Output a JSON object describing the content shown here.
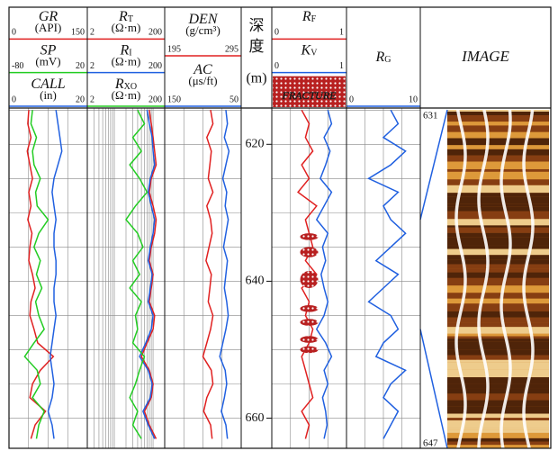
{
  "chart_data": {
    "type": "well-log",
    "depth_label": [
      "深",
      "度",
      "(m)"
    ],
    "depth": [
      615,
      617,
      619,
      621,
      623,
      625,
      627,
      629,
      631,
      633,
      635,
      637,
      639,
      641,
      643,
      645,
      647,
      649,
      651,
      653,
      655,
      657,
      659,
      661,
      663
    ],
    "ylim": [
      614.7,
      664.4
    ],
    "yticks": [
      620,
      640,
      660
    ],
    "ygrid": [
      615,
      620,
      625,
      630,
      635,
      640,
      645,
      650,
      655,
      660
    ],
    "tracks": [
      {
        "xgrid": [
          37.5,
          75,
          112.5
        ],
        "curves": [
          {
            "name": "GR",
            "unit": "(API)",
            "xlim": [
              0,
              150
            ],
            "color": "#e02020",
            "values": [
              38,
              36,
              42,
              35,
              40,
              45,
              38,
              42,
              36,
              44,
              40,
              38,
              45,
              50,
              42,
              40,
              48,
              55,
              85,
              60,
              45,
              40,
              70,
              50,
              42
            ]
          },
          {
            "name": "SP",
            "unit": "(mV)",
            "xlim": [
              -80,
              20
            ],
            "color": "#22cc22",
            "values": [
              -50,
              -52,
              -45,
              -50,
              -48,
              -40,
              -46,
              -44,
              -30,
              -42,
              -48,
              -40,
              -45,
              -38,
              -46,
              -42,
              -35,
              -48,
              -60,
              -44,
              -40,
              -50,
              -35,
              -42,
              -45
            ]
          },
          {
            "name": "CALL",
            "unit": "(in)",
            "xlim": [
              0,
              20
            ],
            "color": "#2060e0",
            "values": [
              12,
              12.5,
              13,
              13.5,
              12.5,
              11.5,
              11,
              11.5,
              12,
              11.5,
              11.5,
              12,
              12,
              11.5,
              11.5,
              12,
              11.5,
              11,
              10.5,
              11,
              11.5,
              11,
              10,
              11,
              11.5
            ]
          }
        ]
      },
      {
        "log": true,
        "xgrid": [
          3,
          4,
          5,
          6,
          7,
          8,
          9,
          10,
          20,
          30,
          40,
          50,
          60,
          70,
          80,
          90,
          100
        ],
        "curves": [
          {
            "name": "R",
            "sub": "T",
            "unit": "(Ω·m)",
            "xlim": [
              2,
              200
            ],
            "color": "#e02020",
            "values": [
              80,
              90,
              100,
              110,
              120,
              90,
              80,
              100,
              120,
              110,
              90,
              80,
              100,
              90,
              80,
              110,
              100,
              70,
              50,
              80,
              100,
              90,
              60,
              80,
              120
            ]
          },
          {
            "name": "R",
            "sub": "I",
            "unit": "(Ω·m)",
            "xlim": [
              2,
              200
            ],
            "color": "#2060e0",
            "values": [
              70,
              80,
              95,
              100,
              110,
              85,
              75,
              90,
              110,
              100,
              85,
              75,
              95,
              85,
              75,
              100,
              90,
              65,
              45,
              75,
              95,
              85,
              55,
              75,
              110
            ]
          },
          {
            "name": "R",
            "sub": "XO",
            "unit": "(Ω·m)",
            "xlim": [
              2,
              200
            ],
            "color": "#22cc22",
            "values": [
              40,
              60,
              30,
              50,
              25,
              45,
              70,
              35,
              20,
              40,
              55,
              30,
              45,
              25,
              50,
              35,
              40,
              30,
              60,
              45,
              35,
              25,
              40,
              30,
              50
            ]
          }
        ]
      },
      {
        "xgrid": [
          220,
          245,
          270
        ],
        "curves": [
          {
            "name": "DEN",
            "unit": "(g/cm³)",
            "xlim": [
              195,
              295
            ],
            "color": "#e02020",
            "values": [
              255,
              258,
              250,
              256,
              254,
              252,
              258,
              250,
              255,
              257,
              253,
              249,
              256,
              254,
              252,
              258,
              255,
              250,
              245,
              256,
              258,
              250,
              246,
              255,
              257
            ]
          },
          {
            "name": "AC",
            "unit": "(μs/ft)",
            "xlim": [
              150,
              50
            ],
            "color": "#2060e0",
            "values": [
              70,
              68,
              72,
              66,
              70,
              74,
              69,
              71,
              67,
              70,
              73,
              68,
              70,
              72,
              69,
              67,
              70,
              74,
              78,
              71,
              69,
              72,
              76,
              70,
              68
            ]
          }
        ]
      },
      {
        "xgrid": [
          0.25,
          0.5,
          0.75
        ],
        "curves": [
          {
            "name": "R",
            "sub": "F",
            "xlim": [
              0,
              1
            ],
            "color": "#e02020",
            "values": [
              0.4,
              0.5,
              0.45,
              0.55,
              0.4,
              0.5,
              0.35,
              0.6,
              0.45,
              0.5,
              0.55,
              0.45,
              0.6,
              0.4,
              0.5,
              0.45,
              0.55,
              0.5,
              0.4,
              0.45,
              0.5,
              0.55,
              0.4,
              0.5,
              0.45
            ]
          },
          {
            "name": "K",
            "sub": "V",
            "xlim": [
              0,
              1
            ],
            "color": "#2060e0",
            "values": [
              0.75,
              0.8,
              0.7,
              0.78,
              0.72,
              0.65,
              0.8,
              0.7,
              0.6,
              0.75,
              0.68,
              0.72,
              0.66,
              0.7,
              0.75,
              0.7,
              0.6,
              0.72,
              0.8,
              0.7,
              0.75,
              0.68,
              0.72,
              0.74,
              0.7
            ]
          }
        ],
        "fracture": {
          "label": "FRACTURE",
          "intervals": [
            [
              633,
              634
            ],
            [
              635,
              636.5
            ],
            [
              638.5,
              641
            ],
            [
              643.5,
              644.5
            ],
            [
              645.5,
              646.5
            ],
            [
              648,
              649
            ],
            [
              649.5,
              650.5
            ]
          ]
        }
      },
      {
        "xgrid": [
          2.5,
          5,
          7.5
        ],
        "curves": [
          {
            "name": "R",
            "sub": "G",
            "xlim": [
              0,
              10
            ],
            "color": "#2060e0",
            "values": [
              6,
              7,
              5,
              8,
              6,
              3,
              7,
              5,
              6,
              8,
              6,
              4,
              7,
              5,
              3,
              6,
              7,
              5,
              4,
              8,
              6,
              5,
              7,
              6,
              5
            ]
          }
        ]
      }
    ],
    "image": {
      "title": "IMAGE",
      "top_label": 631,
      "bottom_label": 647
    }
  }
}
